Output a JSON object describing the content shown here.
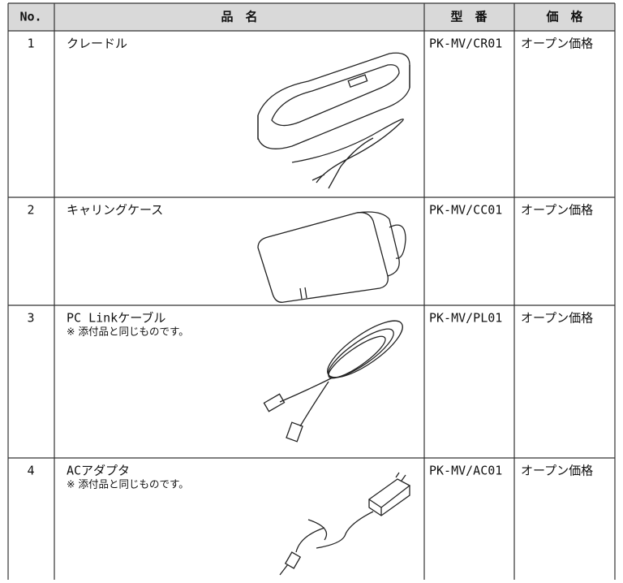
{
  "table": {
    "header": [
      "No.",
      "品　名",
      "型　番",
      "価　格"
    ],
    "rows": [
      {
        "no": "1",
        "name": "クレードル",
        "model": "PK-MV/CR01",
        "price": "オープン価格"
      },
      {
        "no": "2",
        "name": "キャリングケース",
        "model": "PK-MV/CC01",
        "price": "オープン価格"
      },
      {
        "no": "3",
        "name": "PC Linkケーブル",
        "note": "※ 添付品と同じものです。",
        "model": "PK-MV/PL01",
        "price": "オープン価格"
      },
      {
        "no": "4",
        "name": "ACアダプタ",
        "note": "※ 添付品と同じものです。",
        "model": "PK-MV/AC01",
        "price": "オープン価格"
      }
    ]
  }
}
